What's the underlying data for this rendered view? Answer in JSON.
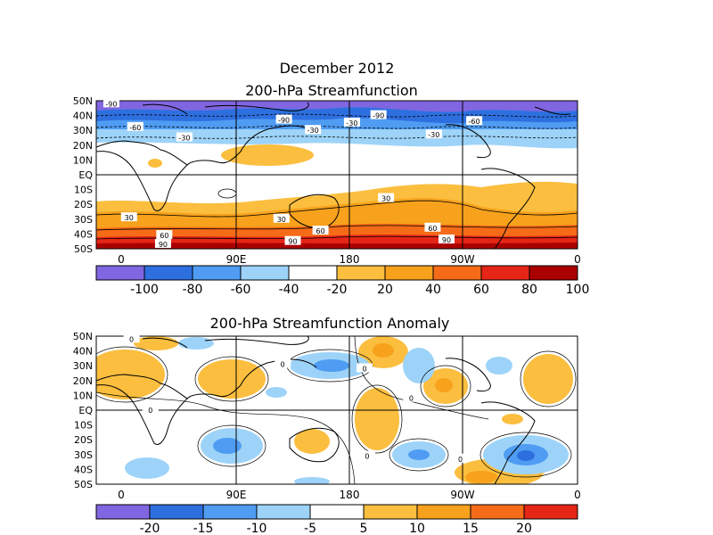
{
  "figure": {
    "title": "December 2012",
    "subtitle": "200-hPa Streamfunction"
  },
  "panels": [
    {
      "id": "total",
      "title": "",
      "lat_labels": [
        "50N",
        "40N",
        "30N",
        "20N",
        "10N",
        "EQ",
        "10S",
        "20S",
        "30S",
        "40S",
        "50S"
      ],
      "lon_labels": [
        "0",
        "90E",
        "180",
        "90W",
        "0"
      ],
      "contour_labels": [
        {
          "text": "-90",
          "lon": -8,
          "lat": 48
        },
        {
          "text": "-90",
          "lon": 129,
          "lat": 37
        },
        {
          "text": "-90",
          "lon": 204,
          "lat": 40
        },
        {
          "text": "-60",
          "lon": 11,
          "lat": 32
        },
        {
          "text": "-60",
          "lon": 280,
          "lat": 36
        },
        {
          "text": "-30",
          "lon": 50,
          "lat": 25
        },
        {
          "text": "-30",
          "lon": 152,
          "lat": 30
        },
        {
          "text": "-30",
          "lon": 248,
          "lat": 27
        },
        {
          "text": "-30",
          "lon": 183,
          "lat": 35
        },
        {
          "text": "30",
          "lon": 6,
          "lat": -29
        },
        {
          "text": "30",
          "lon": 127,
          "lat": -30
        },
        {
          "text": "30",
          "lon": 210,
          "lat": -16
        },
        {
          "text": "60",
          "lon": 158,
          "lat": -38
        },
        {
          "text": "60",
          "lon": 247,
          "lat": -36
        },
        {
          "text": "60",
          "lon": 34,
          "lat": -41
        },
        {
          "text": "90",
          "lon": 33,
          "lat": -47
        },
        {
          "text": "90",
          "lon": 136,
          "lat": -45
        },
        {
          "text": "90",
          "lon": 258,
          "lat": -44
        }
      ],
      "colorbar": {
        "labels": [
          "-100",
          "-80",
          "-60",
          "-40",
          "-20",
          "20",
          "40",
          "60",
          "80",
          "100"
        ],
        "colors": [
          "#8066e0",
          "#2e6fe0",
          "#4f9cf2",
          "#9dd3f8",
          "#ffffff",
          "#fbbe3e",
          "#f7a11c",
          "#f66b17",
          "#e52617",
          "#aa0000"
        ]
      }
    },
    {
      "id": "anomaly",
      "title": "200-hPa Streamfunction Anomaly",
      "lat_labels": [
        "50N",
        "40N",
        "30N",
        "20N",
        "10N",
        "EQ",
        "10S",
        "20S",
        "30S",
        "40S",
        "50S"
      ],
      "lon_labels": [
        "0",
        "90E",
        "180",
        "90W",
        "0"
      ],
      "contour_labels": [
        {
          "text": "0",
          "lon": 8,
          "lat": 48
        },
        {
          "text": "0",
          "lon": 128,
          "lat": 31
        },
        {
          "text": "0",
          "lon": 193,
          "lat": 28
        },
        {
          "text": "0",
          "lon": 230,
          "lat": 8
        },
        {
          "text": "0",
          "lon": 23,
          "lat": 0
        },
        {
          "text": "0",
          "lon": 195,
          "lat": -31
        },
        {
          "text": "0",
          "lon": 269,
          "lat": -33
        }
      ],
      "colorbar": {
        "labels": [
          "-20",
          "-15",
          "-10",
          "-5",
          "5",
          "10",
          "15",
          "20"
        ],
        "colors": [
          "#8066e0",
          "#2e6fe0",
          "#4f9cf2",
          "#9dd3f8",
          "#ffffff",
          "#fbbe3e",
          "#f7a11c",
          "#f66b17",
          "#e52617"
        ]
      }
    }
  ]
}
